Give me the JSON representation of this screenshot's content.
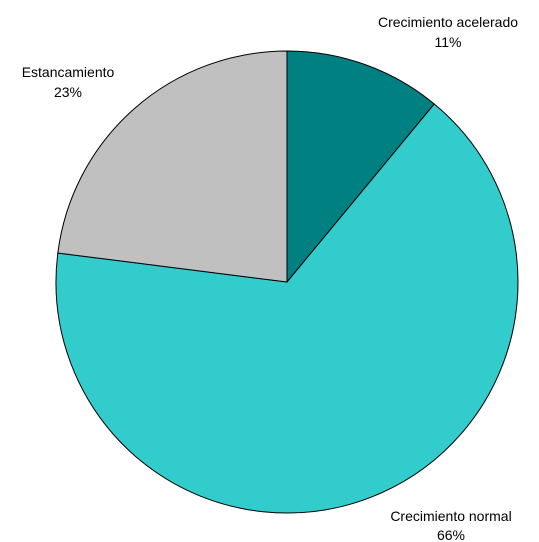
{
  "chart_data": {
    "type": "pie",
    "title": "",
    "slices": [
      {
        "label": "Crecimiento acelerado",
        "value": 11,
        "pct_label": "11%",
        "color": "#008080"
      },
      {
        "label": "Crecimiento normal",
        "value": 66,
        "pct_label": "66%",
        "color": "#33CCCC"
      },
      {
        "label": "Estancamiento",
        "value": 23,
        "pct_label": "23%",
        "color": "#C0C0C0"
      }
    ],
    "start_angle_deg": 0,
    "direction": "clockwise",
    "legend": "none"
  }
}
